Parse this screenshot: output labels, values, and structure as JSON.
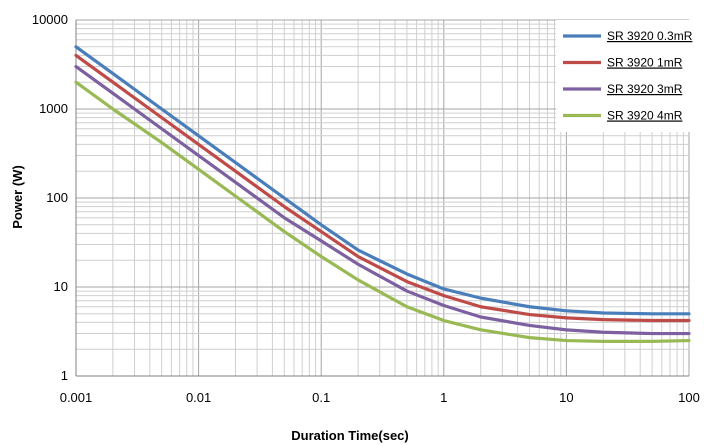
{
  "chart_data": {
    "type": "line",
    "title": "",
    "xlabel": "Duration Time(sec)",
    "ylabel": "Power (W)",
    "x_scale": "log",
    "y_scale": "log",
    "xlim": [
      0.001,
      100
    ],
    "ylim": [
      1,
      10000
    ],
    "grid": true,
    "legend_position": "top-right",
    "x_tick_labels": [
      "0.001",
      "0.01",
      "0.1",
      "1",
      "10",
      "100"
    ],
    "y_tick_labels": [
      "1",
      "10",
      "100",
      "1000",
      "10000"
    ],
    "x": [
      0.001,
      0.002,
      0.005,
      0.01,
      0.02,
      0.05,
      0.1,
      0.2,
      0.5,
      1,
      2,
      5,
      10,
      20,
      50,
      100
    ],
    "series": [
      {
        "name": "SR 3920 0.3mR",
        "color": "#4a7ebb",
        "values": [
          5000,
          2500,
          1000,
          500,
          250,
          100,
          50,
          26,
          14,
          9.5,
          7.5,
          6.0,
          5.4,
          5.1,
          5.0,
          5.0
        ]
      },
      {
        "name": "SR 3920 1mR",
        "color": "#be4b48",
        "values": [
          4000,
          2000,
          800,
          400,
          200,
          80,
          42,
          22,
          11.5,
          8.0,
          6.0,
          4.9,
          4.5,
          4.3,
          4.2,
          4.2
        ]
      },
      {
        "name": "SR 3920 3mR",
        "color": "#7d60a0",
        "values": [
          3000,
          1500,
          600,
          300,
          150,
          60,
          33,
          18,
          9.0,
          6.2,
          4.6,
          3.7,
          3.3,
          3.1,
          3.0,
          3.0
        ]
      },
      {
        "name": "SR 3920 4mR",
        "color": "#98b954",
        "values": [
          2000,
          1000,
          420,
          210,
          105,
          42,
          22,
          12,
          6.0,
          4.2,
          3.3,
          2.7,
          2.5,
          2.45,
          2.45,
          2.5
        ]
      }
    ]
  }
}
